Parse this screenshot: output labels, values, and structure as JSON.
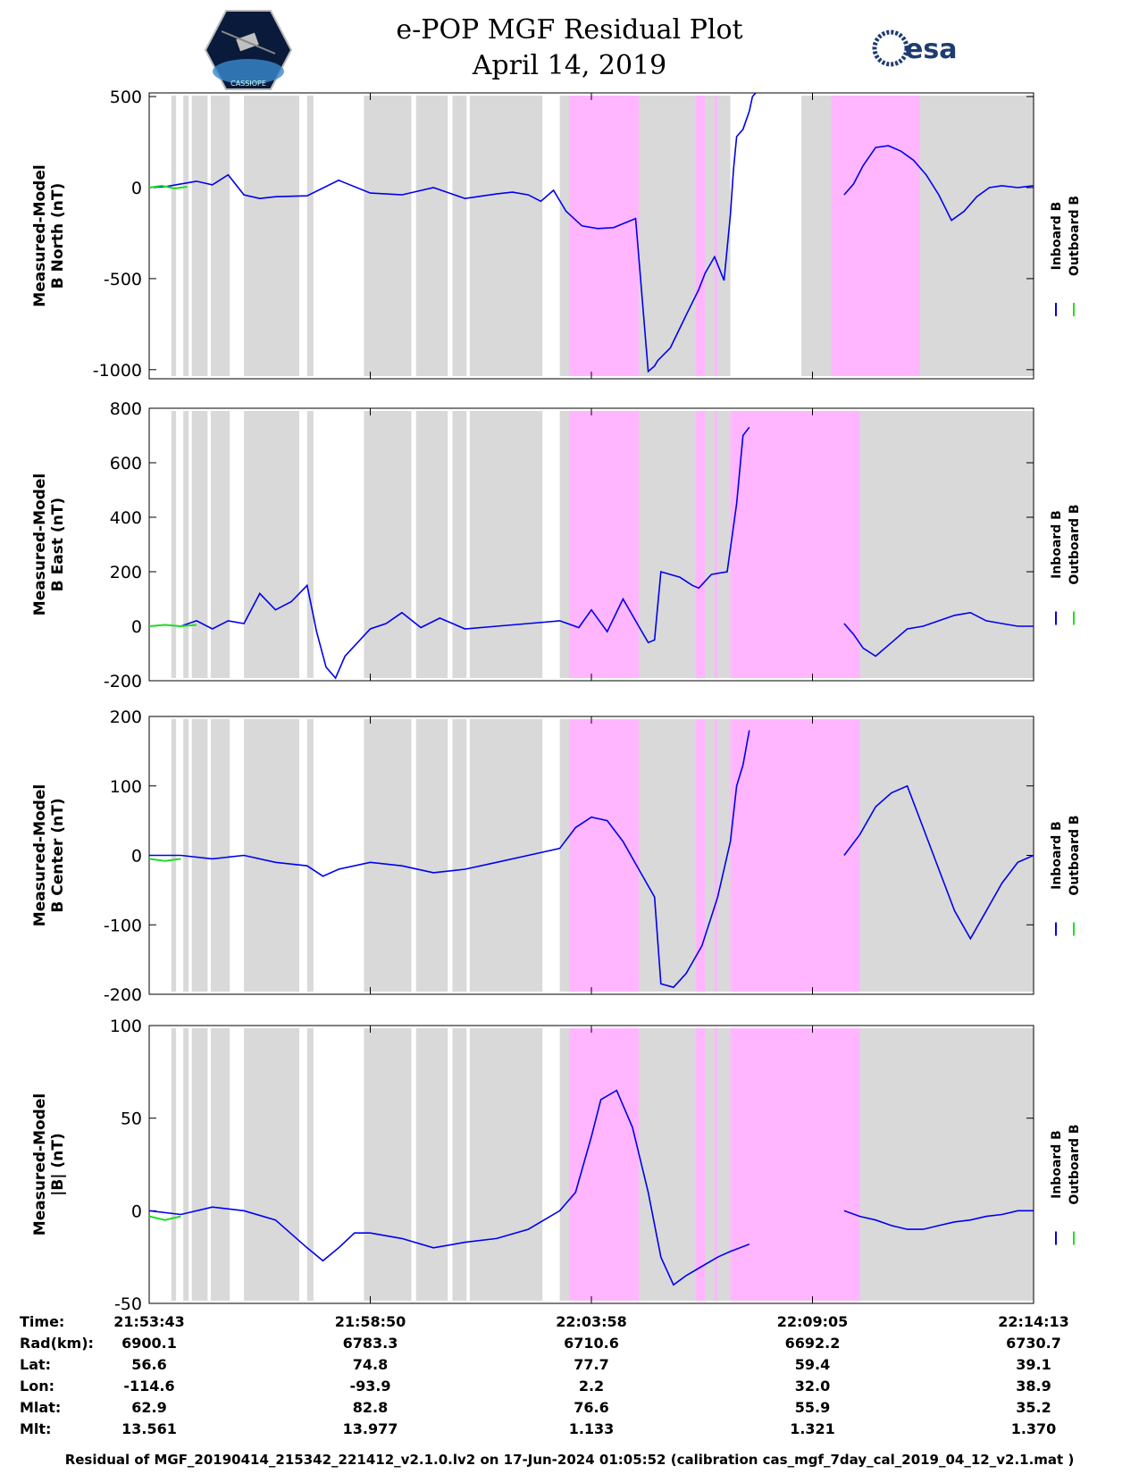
{
  "header": {
    "title_line1": "e-POP MGF Residual Plot",
    "title_line2": "April 14, 2019",
    "left_logo_text": "CASSIOPE",
    "right_logo_text": "esa"
  },
  "colors": {
    "inboard": "#0000ee",
    "outboard": "#22dd22",
    "gray_band": "#d9d9d9",
    "pink_band": "#ffb6ff",
    "axis": "#000000"
  },
  "chart_data": [
    {
      "type": "line",
      "ylabel_line1": "Measured-Model",
      "ylabel_line2": "B North (nT)",
      "ylim": [
        -1050,
        520
      ],
      "yticks": [
        -1000,
        -500,
        0,
        500
      ],
      "ytick_labels": [
        "-1000",
        "-500",
        "0",
        "500"
      ],
      "series": [
        {
          "name": "Inboard B",
          "x": [
            0,
            0.5,
            1,
            1.5,
            2,
            2.5,
            3,
            3.5,
            4,
            5,
            6,
            7,
            8,
            9,
            10,
            11,
            11.5,
            12,
            12.4,
            12.8,
            13.2,
            13.7,
            14.2,
            14.7,
            15.4,
            15.8,
            16.0,
            16.1,
            16.5,
            17,
            17.4,
            17.6,
            17.9,
            18.2,
            18.4,
            18.5,
            18.6,
            18.8,
            19.0,
            19.1,
            19.2
          ],
          "values": [
            0,
            5,
            20,
            35,
            15,
            70,
            -40,
            -60,
            -50,
            -45,
            40,
            -30,
            -40,
            0,
            -60,
            -35,
            -25,
            -40,
            -75,
            -15,
            -130,
            -210,
            -225,
            -220,
            -170,
            -1010,
            -980,
            -950,
            -880,
            -700,
            -560,
            -470,
            -380,
            -510,
            -150,
            100,
            280,
            320,
            420,
            500,
            520
          ]
        },
        {
          "name": "Inboard B",
          "x": [
            22.0,
            22.3,
            22.6,
            23.0,
            23.4,
            23.8,
            24.2,
            24.6,
            25.0,
            25.4,
            25.8,
            26.2,
            26.6,
            27.0,
            27.5,
            28.0
          ],
          "values": [
            -40,
            20,
            120,
            220,
            230,
            200,
            150,
            70,
            -40,
            -180,
            -130,
            -50,
            0,
            10,
            0,
            10
          ]
        },
        {
          "name": "Outboard B",
          "x": [
            0,
            0.4,
            0.8,
            1.2
          ],
          "values": [
            0,
            10,
            -5,
            5
          ]
        }
      ],
      "gray_bands": [
        [
          0.7,
          0.85
        ],
        [
          1.08,
          1.25
        ],
        [
          1.35,
          1.85
        ],
        [
          1.95,
          2.55
        ],
        [
          3.0,
          4.75
        ],
        [
          5.0,
          5.2
        ],
        [
          6.8,
          8.3
        ],
        [
          8.45,
          9.45
        ],
        [
          9.6,
          10.05
        ],
        [
          10.15,
          12.45
        ],
        [
          13.0,
          18.4
        ],
        [
          20.65,
          28.0
        ]
      ],
      "pink_bands": [
        [
          13.3,
          15.5
        ],
        [
          17.3,
          17.6
        ],
        [
          17.9,
          18.0
        ],
        [
          21.6,
          22.2
        ],
        [
          22.2,
          24.4
        ]
      ]
    },
    {
      "type": "line",
      "ylabel_line1": "Measured-Model",
      "ylabel_line2": "B East (nT)",
      "ylim": [
        -200,
        800
      ],
      "yticks": [
        -200,
        0,
        200,
        400,
        600,
        800
      ],
      "ytick_labels": [
        "-200",
        "0",
        "200",
        "400",
        "600",
        "800"
      ],
      "series": [
        {
          "name": "Inboard B",
          "x": [
            0,
            0.5,
            1,
            1.5,
            2,
            2.5,
            3,
            3.5,
            4,
            4.5,
            5.0,
            5.3,
            5.6,
            5.9,
            6.2,
            7,
            7.5,
            8,
            8.6,
            9.2,
            10,
            11,
            12,
            13,
            13.6,
            14,
            14.5,
            15,
            15.5,
            15.8,
            16.0,
            16.2,
            16.8,
            17.2,
            17.4,
            17.8,
            18.3,
            18.6,
            18.8,
            19.0
          ],
          "values": [
            0,
            5,
            0,
            20,
            -10,
            20,
            10,
            120,
            60,
            90,
            150,
            -20,
            -150,
            -190,
            -110,
            -10,
            10,
            50,
            -5,
            30,
            -10,
            0,
            10,
            20,
            -5,
            60,
            -20,
            100,
            0,
            -60,
            -50,
            200,
            180,
            150,
            140,
            190,
            200,
            450,
            700,
            730
          ]
        },
        {
          "name": "Inboard B",
          "x": [
            22.0,
            22.3,
            22.6,
            23.0,
            23.5,
            24.0,
            24.5,
            25.0,
            25.5,
            26.0,
            26.5,
            27.0,
            27.5,
            28.0
          ],
          "values": [
            10,
            -30,
            -80,
            -110,
            -60,
            -10,
            0,
            20,
            40,
            50,
            20,
            10,
            0,
            0
          ]
        },
        {
          "name": "Outboard B",
          "x": [
            0,
            0.5,
            1.0,
            1.5
          ],
          "values": [
            0,
            5,
            0,
            5
          ]
        }
      ],
      "gray_bands": [
        [
          0.7,
          0.85
        ],
        [
          1.08,
          1.25
        ],
        [
          1.35,
          1.85
        ],
        [
          1.95,
          2.55
        ],
        [
          3.0,
          4.75
        ],
        [
          5.0,
          5.2
        ],
        [
          6.8,
          8.3
        ],
        [
          8.45,
          9.45
        ],
        [
          9.6,
          10.05
        ],
        [
          10.15,
          12.45
        ],
        [
          13.0,
          18.4
        ],
        [
          20.65,
          28.0
        ]
      ],
      "pink_bands": [
        [
          13.3,
          15.5
        ],
        [
          17.3,
          17.6
        ],
        [
          17.9,
          18.0
        ],
        [
          18.4,
          22.5
        ]
      ]
    },
    {
      "type": "line",
      "ylabel_line1": "Measured-Model",
      "ylabel_line2": "B Center (nT)",
      "ylim": [
        -200,
        200
      ],
      "yticks": [
        -200,
        -100,
        0,
        100,
        200
      ],
      "ytick_labels": [
        "-200",
        "-100",
        "0",
        "100",
        "200"
      ],
      "series": [
        {
          "name": "Inboard B",
          "x": [
            0,
            1,
            2,
            3,
            4,
            5,
            5.5,
            6,
            7,
            8,
            9,
            10,
            11,
            12,
            13,
            13.5,
            14,
            14.5,
            15,
            15.5,
            16.0,
            16.2,
            16.6,
            17,
            17.5,
            18.0,
            18.2,
            18.4,
            18.6,
            18.8,
            19.0
          ],
          "values": [
            0,
            0,
            -5,
            0,
            -10,
            -15,
            -30,
            -20,
            -10,
            -15,
            -25,
            -20,
            -10,
            0,
            10,
            40,
            55,
            50,
            20,
            -20,
            -60,
            -185,
            -190,
            -170,
            -130,
            -60,
            -20,
            20,
            100,
            130,
            180
          ]
        },
        {
          "name": "Inboard B",
          "x": [
            22.0,
            22.5,
            23.0,
            23.5,
            24.0,
            24.5,
            25.0,
            25.5,
            26.0,
            26.5,
            27.0,
            27.5,
            28.0
          ],
          "values": [
            0,
            30,
            70,
            90,
            100,
            40,
            -20,
            -80,
            -120,
            -80,
            -40,
            -10,
            0
          ]
        },
        {
          "name": "Outboard B",
          "x": [
            0,
            0.5,
            1.0
          ],
          "values": [
            -5,
            -8,
            -5
          ]
        }
      ],
      "gray_bands": [
        [
          0.7,
          0.85
        ],
        [
          1.08,
          1.25
        ],
        [
          1.35,
          1.85
        ],
        [
          1.95,
          2.55
        ],
        [
          3.0,
          4.75
        ],
        [
          5.0,
          5.2
        ],
        [
          6.8,
          8.3
        ],
        [
          8.45,
          9.45
        ],
        [
          9.6,
          10.05
        ],
        [
          10.15,
          12.45
        ],
        [
          13.0,
          18.4
        ],
        [
          20.65,
          28.0
        ]
      ],
      "pink_bands": [
        [
          13.3,
          15.5
        ],
        [
          17.3,
          17.6
        ],
        [
          17.9,
          18.0
        ],
        [
          18.4,
          22.5
        ]
      ]
    },
    {
      "type": "line",
      "ylabel_line1": "Measured-Model",
      "ylabel_line2": "|B| (nT)",
      "ylim": [
        -50,
        100
      ],
      "yticks": [
        -50,
        0,
        50,
        100
      ],
      "ytick_labels": [
        "-50",
        "0",
        "50",
        "100"
      ],
      "series": [
        {
          "name": "Inboard B",
          "x": [
            0,
            1,
            2,
            3,
            4,
            5,
            5.5,
            6,
            6.5,
            7,
            8,
            9,
            10,
            11,
            12,
            13,
            13.5,
            14,
            14.3,
            14.8,
            15.3,
            15.8,
            16.2,
            16.6,
            17,
            17.5,
            18.0,
            18.4,
            19.0
          ],
          "values": [
            0,
            -2,
            2,
            0,
            -5,
            -20,
            -27,
            -20,
            -12,
            -12,
            -15,
            -20,
            -17,
            -15,
            -10,
            0,
            10,
            40,
            60,
            65,
            45,
            10,
            -25,
            -40,
            -35,
            -30,
            -25,
            -22,
            -18
          ]
        },
        {
          "name": "Inboard B",
          "x": [
            22.0,
            22.5,
            23.0,
            23.5,
            24.0,
            24.5,
            25.0,
            25.5,
            26.0,
            26.5,
            27.0,
            27.5,
            28.0
          ],
          "values": [
            0,
            -3,
            -5,
            -8,
            -10,
            -10,
            -8,
            -6,
            -5,
            -3,
            -2,
            0,
            0
          ]
        },
        {
          "name": "Outboard B",
          "x": [
            0,
            0.5,
            1.0
          ],
          "values": [
            -3,
            -5,
            -3
          ]
        }
      ],
      "gray_bands": [
        [
          0.7,
          0.85
        ],
        [
          1.08,
          1.25
        ],
        [
          1.35,
          1.85
        ],
        [
          1.95,
          2.55
        ],
        [
          3.0,
          4.75
        ],
        [
          5.0,
          5.2
        ],
        [
          6.8,
          8.3
        ],
        [
          8.45,
          9.45
        ],
        [
          9.6,
          10.05
        ],
        [
          10.15,
          12.45
        ],
        [
          13.0,
          18.4
        ],
        [
          20.65,
          28.0
        ]
      ],
      "pink_bands": [
        [
          13.3,
          15.5
        ],
        [
          17.3,
          17.6
        ],
        [
          17.9,
          18.0
        ],
        [
          18.4,
          22.5
        ]
      ]
    }
  ],
  "legend": {
    "inboard_label": "Inboard B",
    "outboard_label": "Outboard B"
  },
  "x_axis": {
    "xlim": [
      0,
      28.0
    ],
    "ticks": [
      0,
      7,
      14,
      21,
      28
    ]
  },
  "info_table": {
    "labels": [
      "Time:",
      "Rad(km):",
      "Lat:",
      "Lon:",
      "Mlat:",
      "Mlt:"
    ],
    "columns": [
      [
        "21:53:43",
        "6900.1",
        "56.6",
        "-114.6",
        "62.9",
        "13.561"
      ],
      [
        "21:58:50",
        "6783.3",
        "74.8",
        "-93.9",
        "82.8",
        "13.977"
      ],
      [
        "22:03:58",
        "6710.6",
        "77.7",
        "2.2",
        "76.6",
        "1.133"
      ],
      [
        "22:09:05",
        "6692.2",
        "59.4",
        "32.0",
        "55.9",
        "1.321"
      ],
      [
        "22:14:13",
        "6730.7",
        "39.1",
        "38.9",
        "35.2",
        "1.370"
      ]
    ]
  },
  "footer": {
    "text": "Residual of MGF_20190414_215342_221412_v2.1.0.lv2 on 17-Jun-2024 01:05:52 (calibration cas_mgf_7day_cal_2019_04_12_v2.1.mat )"
  }
}
